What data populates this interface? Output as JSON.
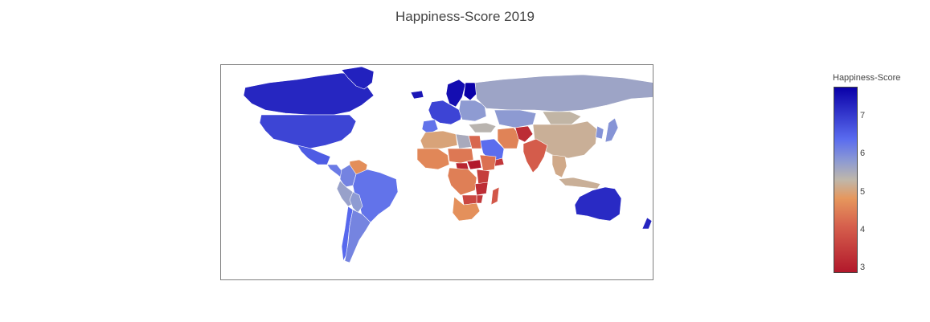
{
  "title": "Happiness-Score 2019",
  "colorbar": {
    "title": "Happiness-Score",
    "min": 2.85,
    "max": 7.77,
    "ticks": [
      "3",
      "4",
      "5",
      "6",
      "7"
    ],
    "scale": [
      {
        "stop": 0.0,
        "color": "#b2182b"
      },
      {
        "stop": 0.25,
        "color": "#d6604d"
      },
      {
        "stop": 0.4,
        "color": "#e6975d"
      },
      {
        "stop": 0.5,
        "color": "#bfb7aa"
      },
      {
        "stop": 0.6,
        "color": "#8e9bd2"
      },
      {
        "stop": 0.72,
        "color": "#5a6cef"
      },
      {
        "stop": 1.0,
        "color": "#0a00a8"
      }
    ]
  },
  "chart_data": {
    "type": "choropleth",
    "title": "Happiness-Score 2019",
    "colorbar_title": "Happiness-Score",
    "range": [
      2.85,
      7.77
    ],
    "regions": [
      {
        "name": "Canada",
        "value": 7.28
      },
      {
        "name": "Greenland",
        "value": 7.35
      },
      {
        "name": "United States",
        "value": 6.89
      },
      {
        "name": "Mexico",
        "value": 6.6
      },
      {
        "name": "Central America",
        "value": 6.2
      },
      {
        "name": "Venezuela",
        "value": 4.7
      },
      {
        "name": "Colombia",
        "value": 6.1
      },
      {
        "name": "Peru",
        "value": 5.7
      },
      {
        "name": "Brazil",
        "value": 6.3
      },
      {
        "name": "Bolivia",
        "value": 5.8
      },
      {
        "name": "Argentina",
        "value": 6.09
      },
      {
        "name": "Chile",
        "value": 6.44
      },
      {
        "name": "Iceland",
        "value": 7.49
      },
      {
        "name": "Scandinavia",
        "value": 7.6
      },
      {
        "name": "Finland",
        "value": 7.77
      },
      {
        "name": "Western Europe",
        "value": 6.9
      },
      {
        "name": "Iberia",
        "value": 6.3
      },
      {
        "name": "Eastern Europe",
        "value": 5.8
      },
      {
        "name": "Turkey",
        "value": 5.37
      },
      {
        "name": "Russia",
        "value": 5.65
      },
      {
        "name": "Kazakhstan",
        "value": 5.81
      },
      {
        "name": "Mongolia",
        "value": 5.28
      },
      {
        "name": "China",
        "value": 5.19
      },
      {
        "name": "Japan",
        "value": 5.89
      },
      {
        "name": "Korea",
        "value": 5.9
      },
      {
        "name": "Iran",
        "value": 4.55
      },
      {
        "name": "Afghanistan",
        "value": 3.2
      },
      {
        "name": "Saudi Arabia",
        "value": 6.38
      },
      {
        "name": "Yemen",
        "value": 3.38
      },
      {
        "name": "India",
        "value": 4.02
      },
      {
        "name": "Southeast Asia",
        "value": 5.1
      },
      {
        "name": "Indonesia",
        "value": 5.19
      },
      {
        "name": "Australia",
        "value": 7.23
      },
      {
        "name": "New Zealand",
        "value": 7.31
      },
      {
        "name": "North Africa",
        "value": 5.0
      },
      {
        "name": "Libya",
        "value": 5.53
      },
      {
        "name": "Egypt",
        "value": 4.17
      },
      {
        "name": "West Africa",
        "value": 4.6
      },
      {
        "name": "Sahel",
        "value": 4.4
      },
      {
        "name": "South Sudan",
        "value": 2.85
      },
      {
        "name": "Central African Republic",
        "value": 3.08
      },
      {
        "name": "Ethiopia",
        "value": 4.29
      },
      {
        "name": "Central Africa",
        "value": 4.5
      },
      {
        "name": "East Africa",
        "value": 3.5
      },
      {
        "name": "Tanzania",
        "value": 3.23
      },
      {
        "name": "Madagascar",
        "value": 3.93
      },
      {
        "name": "Southern Africa",
        "value": 4.72
      },
      {
        "name": "Zimbabwe",
        "value": 3.66
      },
      {
        "name": "Malawi",
        "value": 3.41
      }
    ]
  }
}
